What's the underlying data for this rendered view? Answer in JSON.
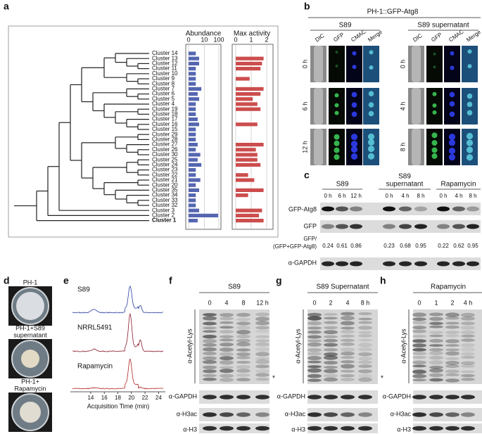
{
  "panel_a": {
    "label": "a",
    "abundance_title": "Abundance",
    "max_activity_title": "Max activity",
    "abundance_axis": {
      "scale": "symlog",
      "xlim": [
        0,
        100
      ],
      "xticks": [
        0,
        10,
        100
      ],
      "color": "#5566b0"
    },
    "activity_axis": {
      "xlim": [
        0,
        2
      ],
      "xticks": [
        0,
        1,
        2
      ],
      "color": "#cc4d4d"
    },
    "clusters": [
      "Cluster 14",
      "Cluster 13",
      "Cluster 12",
      "Cluster 11",
      "Cluster 10",
      "Cluster 9",
      "Cluster 8",
      "Cluster 7",
      "Cluster 6",
      "Cluster 5",
      "Cluster 4",
      "Cluster 19",
      "Cluster 18",
      "Cluster 17",
      "Cluster 16",
      "Cluster 15",
      "Cluster 29",
      "Cluster 28",
      "Cluster 27",
      "Cluster 26",
      "Cluster 30",
      "Cluster 25",
      "Cluster 24",
      "Cluster 23",
      "Cluster 22",
      "Cluster 21",
      "Cluster 20",
      "Cluster 35",
      "Cluster 34",
      "Cluster 33",
      "Cluster 32",
      "Cluster 3",
      "Cluster 2",
      "Cluster 1"
    ],
    "abundance": [
      2,
      4,
      4,
      2,
      2,
      2,
      2,
      6,
      3,
      4,
      2,
      2,
      2,
      3,
      4,
      2,
      2,
      2,
      3,
      2,
      5,
      3,
      6,
      2,
      2,
      5,
      2,
      4,
      2,
      2,
      2,
      4,
      90,
      3
    ],
    "max_activity": [
      null,
      1.8,
      1.7,
      1.6,
      null,
      0.9,
      null,
      1.8,
      1.6,
      1.1,
      1.4,
      1.6,
      null,
      null,
      1.4,
      null,
      null,
      null,
      1.8,
      1.3,
      1.4,
      1.4,
      1.6,
      null,
      0.8,
      1.2,
      null,
      1.8,
      0.8,
      null,
      null,
      1.7,
      1.5,
      1.8
    ]
  },
  "panel_b": {
    "label": "b",
    "title": "PH-1::GFP-Atg8",
    "channels": [
      "DIC",
      "GFP",
      "CMAC",
      "Merge"
    ],
    "groups": [
      {
        "name": "S89",
        "times": [
          "0 h",
          "6 h",
          "12 h"
        ]
      },
      {
        "name": "S89 supernatant",
        "times": [
          "0 h",
          "4 h",
          "8 h"
        ]
      }
    ]
  },
  "panel_c": {
    "label": "c",
    "treatments": [
      {
        "name_lines": [
          "S89"
        ],
        "times": [
          "0 h",
          "6 h",
          "12 h"
        ]
      },
      {
        "name_lines": [
          "S89",
          "supernatant"
        ],
        "times": [
          "0 h",
          "4 h",
          "8 h"
        ]
      },
      {
        "name_lines": [
          "Rapamycin"
        ],
        "times": [
          "0 h",
          "4 h",
          "8 h"
        ]
      }
    ],
    "row_gfp_atg8": "GFP-Atg8",
    "row_gfp": "GFP",
    "row_ratio": [
      "GFP/",
      "(GFP+GFP-Atg8)"
    ],
    "row_gapdh": "α-GAPDH",
    "ratios": [
      0.24,
      0.61,
      0.86,
      0.23,
      0.68,
      0.95,
      0.22,
      0.62,
      0.95
    ]
  },
  "panel_d": {
    "label": "d",
    "plates": [
      [
        "PH-1"
      ],
      [
        "PH-1+S89",
        "supernatant"
      ],
      [
        "PH-1+",
        "Rapamycin"
      ]
    ]
  },
  "panel_e": {
    "label": "e",
    "traces": [
      {
        "name": "S89",
        "color": "#2b3fa0"
      },
      {
        "name": "NRRL5491",
        "color": "#8b1a2b"
      },
      {
        "name": "Rapamycin",
        "color": "#b22222"
      }
    ],
    "xlabel": "Acquisition Time (min)",
    "xlim": [
      11,
      25
    ],
    "xticks": [
      14,
      16,
      18,
      20,
      22,
      24
    ]
  },
  "panel_f": {
    "label": "f",
    "title": "S89",
    "times": [
      "0",
      "4",
      "8",
      "12 h"
    ],
    "blot_label": "α-Acetyl-Lys",
    "marker": "*",
    "rows": [
      "α-GAPDH",
      "α-H3ac",
      "α-H3"
    ]
  },
  "panel_g": {
    "label": "g",
    "title": "S89 Supernatant",
    "times": [
      "0",
      "2",
      "4",
      "8 h"
    ],
    "blot_label": "α-Acetyl-Lys",
    "marker": "*",
    "rows": [
      "α-GAPDH",
      "α-H3ac",
      "α-H3"
    ]
  },
  "panel_h": {
    "label": "h",
    "title": "Rapamycin",
    "times": [
      "0",
      "1",
      "2",
      "4 h"
    ],
    "blot_label": "α-Acetyl-Lys",
    "marker": "*",
    "rows": [
      "α-GAPDH",
      "α-H3ac",
      "α-H3"
    ]
  }
}
